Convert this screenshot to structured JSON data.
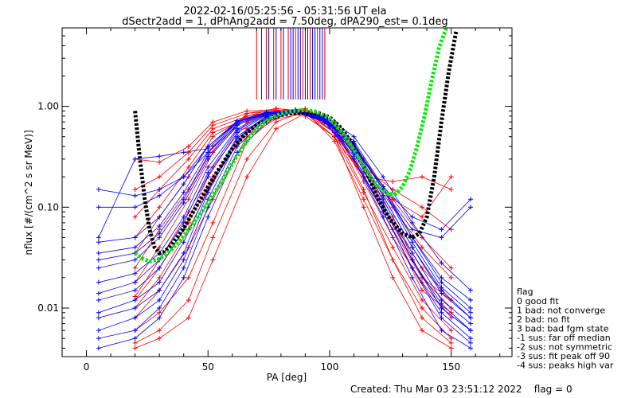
{
  "chart_data": {
    "type": "line",
    "title": "2022-02-16/05:25:56 - 05:31:56 UT ela",
    "subtitle": "dSectr2add = 1, dPhAng2add = 7.50deg, dPA290_est=    0.1deg",
    "xlabel": "PA [deg]",
    "ylabel": "nflux [#/(cm^2 s sr MeV)]",
    "xlim": [
      -10,
      175
    ],
    "ylim": [
      0.0033,
      6.0
    ],
    "yscale": "log",
    "grid": false,
    "x_ticks": [
      0,
      50,
      100,
      150
    ],
    "x_tick_labels": [
      "0",
      "50",
      "100",
      "150"
    ],
    "y_ticks": [
      0.01,
      0.1,
      1.0
    ],
    "y_tick_labels": [
      "0.01",
      "0.10",
      "1.00"
    ],
    "footer": "Created: Thu Mar 03 23:51:12 2022    flag = 0",
    "legend": {
      "position": "right",
      "title": "flag",
      "items": [
        " 0 good fit",
        " 1 bad: not converge",
        " 2 bad: no fit",
        " 3 bad: bad fgm state",
        "-1 sus: far off median",
        "-2 sus: not symmetric",
        "-3 sus: fit peak off 90",
        "-4 sus: peaks high var"
      ]
    },
    "fit_curves": [
      {
        "color": "#000000",
        "x": [
          20,
          22,
          24,
          26,
          28,
          30,
          32,
          35,
          40,
          45,
          50,
          55,
          60,
          65,
          70,
          75,
          80,
          85,
          90,
          95,
          100,
          105,
          110,
          115,
          120,
          125,
          130,
          134,
          137,
          140,
          143,
          146,
          149,
          152
        ],
        "y": [
          0.9,
          0.3,
          0.12,
          0.06,
          0.04,
          0.035,
          0.036,
          0.042,
          0.062,
          0.1,
          0.16,
          0.25,
          0.38,
          0.52,
          0.65,
          0.75,
          0.82,
          0.86,
          0.87,
          0.86,
          0.78,
          0.6,
          0.4,
          0.23,
          0.12,
          0.075,
          0.055,
          0.05,
          0.055,
          0.08,
          0.2,
          0.7,
          2.2,
          5.5
        ]
      },
      {
        "color": "#00ee00",
        "x": [
          20,
          23,
          26,
          29,
          32,
          35,
          40,
          45,
          50,
          55,
          60,
          65,
          70,
          75,
          80,
          85,
          90,
          95,
          100,
          105,
          110,
          115,
          120,
          124,
          127,
          130,
          133,
          136,
          139,
          142,
          145,
          148
        ],
        "y": [
          0.035,
          0.031,
          0.029,
          0.03,
          0.033,
          0.038,
          0.052,
          0.075,
          0.11,
          0.17,
          0.27,
          0.42,
          0.6,
          0.75,
          0.85,
          0.9,
          0.92,
          0.88,
          0.76,
          0.56,
          0.37,
          0.23,
          0.16,
          0.135,
          0.135,
          0.16,
          0.23,
          0.4,
          0.8,
          1.8,
          3.8,
          6.0
        ]
      }
    ],
    "series": [
      {
        "color": "#ff0000",
        "x": [
          20,
          30,
          42,
          52,
          66,
          78,
          90,
          102,
          114,
          126,
          138,
          150
        ],
        "y": [
          0.0045,
          0.006,
          0.012,
          0.05,
          0.3,
          0.7,
          0.9,
          0.55,
          0.15,
          0.03,
          0.01,
          0.005
        ]
      },
      {
        "color": "#ff0000",
        "x": [
          20,
          30,
          42,
          52,
          66,
          78,
          90,
          102,
          114,
          126,
          138,
          150
        ],
        "y": [
          0.006,
          0.009,
          0.02,
          0.07,
          0.45,
          0.8,
          0.95,
          0.6,
          0.18,
          0.05,
          0.018,
          0.008
        ]
      },
      {
        "color": "#ff0000",
        "x": [
          20,
          30,
          42,
          52,
          66,
          78,
          90,
          102,
          114,
          126,
          138,
          150
        ],
        "y": [
          0.008,
          0.015,
          0.04,
          0.12,
          0.5,
          0.75,
          0.85,
          0.5,
          0.14,
          0.04,
          0.012,
          0.006
        ]
      },
      {
        "color": "#ff0000",
        "x": [
          20,
          30,
          42,
          52,
          66,
          78,
          90,
          102,
          114,
          126,
          138,
          150
        ],
        "y": [
          0.01,
          0.02,
          0.06,
          0.18,
          0.6,
          0.85,
          0.9,
          0.7,
          0.25,
          0.08,
          0.02,
          0.01
        ]
      },
      {
        "color": "#ff0000",
        "x": [
          20,
          30,
          42,
          52,
          66,
          78,
          90,
          102,
          114,
          126,
          138,
          150
        ],
        "y": [
          0.013,
          0.03,
          0.09,
          0.25,
          0.7,
          0.9,
          0.92,
          0.55,
          0.2,
          0.06,
          0.015,
          0.009
        ]
      },
      {
        "color": "#ff0000",
        "x": [
          20,
          30,
          42,
          52,
          66,
          78,
          90,
          102,
          114,
          126,
          138,
          150
        ],
        "y": [
          0.018,
          0.04,
          0.12,
          0.35,
          0.8,
          0.95,
          0.88,
          0.45,
          0.12,
          0.03,
          0.008,
          0.0045
        ]
      },
      {
        "color": "#ff0000",
        "x": [
          20,
          30,
          42,
          52,
          66,
          78,
          90,
          102,
          114,
          126,
          138,
          150
        ],
        "y": [
          0.025,
          0.06,
          0.15,
          0.4,
          0.85,
          0.95,
          0.9,
          0.6,
          0.2,
          0.07,
          0.025,
          0.012
        ]
      },
      {
        "color": "#ff0000",
        "x": [
          20,
          30,
          42,
          52,
          66,
          78,
          90,
          102,
          114,
          126,
          138,
          150
        ],
        "y": [
          0.035,
          0.08,
          0.2,
          0.5,
          0.8,
          0.9,
          0.95,
          0.65,
          0.25,
          0.1,
          0.04,
          0.02
        ]
      },
      {
        "color": "#ff0000",
        "x": [
          20,
          30,
          42,
          52,
          66,
          78,
          90,
          102,
          114,
          126,
          138,
          150
        ],
        "y": [
          0.05,
          0.1,
          0.25,
          0.55,
          0.75,
          0.85,
          0.9,
          0.7,
          0.3,
          0.12,
          0.05,
          0.025
        ]
      },
      {
        "color": "#ff0000",
        "x": [
          20,
          30,
          42,
          52,
          66,
          78,
          90,
          102,
          114,
          126,
          138,
          150
        ],
        "y": [
          0.08,
          0.15,
          0.3,
          0.6,
          0.8,
          0.88,
          0.85,
          0.6,
          0.25,
          0.15,
          0.1,
          0.06
        ]
      },
      {
        "color": "#ff0000",
        "x": [
          20,
          30,
          42,
          52,
          66,
          78,
          90,
          102,
          114,
          126,
          138,
          150
        ],
        "y": [
          0.15,
          0.2,
          0.35,
          0.65,
          0.85,
          0.9,
          0.8,
          0.5,
          0.2,
          0.18,
          0.2,
          0.15
        ]
      },
      {
        "color": "#ff0000",
        "x": [
          20,
          30,
          42,
          52,
          66,
          78,
          90,
          102,
          114,
          126,
          138,
          150
        ],
        "y": [
          0.3,
          0.28,
          0.4,
          0.7,
          0.9,
          0.92,
          0.85,
          0.55,
          0.22,
          0.12,
          0.08,
          0.2
        ]
      },
      {
        "color": "#ff0000",
        "x": [
          20,
          30,
          42,
          52,
          66,
          78,
          90,
          102,
          114,
          126,
          138,
          150
        ],
        "y": [
          0.004,
          0.005,
          0.008,
          0.03,
          0.2,
          0.6,
          0.85,
          0.5,
          0.1,
          0.02,
          0.006,
          0.004
        ]
      },
      {
        "color": "#ff0000",
        "x": [
          20,
          30,
          42,
          52,
          66,
          78,
          90,
          102,
          114,
          126,
          138,
          150
        ],
        "y": [
          0.012,
          0.025,
          0.07,
          0.2,
          0.55,
          0.82,
          0.93,
          0.62,
          0.2,
          0.06,
          0.02,
          0.012
        ]
      },
      {
        "color": "#0000ff",
        "x": [
          5,
          20,
          30,
          40,
          50,
          62,
          74,
          86,
          98,
          110,
          122,
          134,
          146,
          158
        ],
        "y": [
          0.004,
          0.005,
          0.008,
          0.02,
          0.08,
          0.35,
          0.7,
          0.9,
          0.7,
          0.3,
          0.08,
          0.02,
          0.006,
          0.004
        ]
      },
      {
        "color": "#0000ff",
        "x": [
          5,
          20,
          30,
          40,
          50,
          62,
          74,
          86,
          98,
          110,
          122,
          134,
          146,
          158
        ],
        "y": [
          0.006,
          0.008,
          0.012,
          0.03,
          0.12,
          0.45,
          0.78,
          0.92,
          0.75,
          0.35,
          0.1,
          0.03,
          0.01,
          0.006
        ]
      },
      {
        "color": "#0000ff",
        "x": [
          5,
          20,
          30,
          40,
          50,
          62,
          74,
          86,
          98,
          110,
          122,
          134,
          146,
          158
        ],
        "y": [
          0.009,
          0.012,
          0.018,
          0.045,
          0.15,
          0.5,
          0.8,
          0.88,
          0.7,
          0.3,
          0.09,
          0.025,
          0.009,
          0.005
        ]
      },
      {
        "color": "#0000ff",
        "x": [
          5,
          20,
          30,
          40,
          50,
          62,
          74,
          86,
          98,
          110,
          122,
          134,
          146,
          158
        ],
        "y": [
          0.012,
          0.015,
          0.025,
          0.06,
          0.2,
          0.55,
          0.82,
          0.9,
          0.78,
          0.4,
          0.13,
          0.04,
          0.014,
          0.008
        ]
      },
      {
        "color": "#0000ff",
        "x": [
          5,
          20,
          30,
          40,
          50,
          62,
          74,
          86,
          98,
          110,
          122,
          134,
          146,
          158
        ],
        "y": [
          0.018,
          0.022,
          0.035,
          0.08,
          0.25,
          0.6,
          0.85,
          0.92,
          0.8,
          0.45,
          0.16,
          0.05,
          0.018,
          0.01
        ]
      },
      {
        "color": "#0000ff",
        "x": [
          5,
          20,
          30,
          40,
          50,
          62,
          74,
          86,
          98,
          110,
          122,
          134,
          146,
          158
        ],
        "y": [
          0.025,
          0.03,
          0.05,
          0.11,
          0.3,
          0.65,
          0.86,
          0.9,
          0.72,
          0.38,
          0.12,
          0.035,
          0.012,
          0.007
        ]
      },
      {
        "color": "#0000ff",
        "x": [
          5,
          20,
          30,
          40,
          50,
          62,
          74,
          86,
          98,
          110,
          122,
          134,
          146,
          158
        ],
        "y": [
          0.035,
          0.04,
          0.065,
          0.14,
          0.35,
          0.7,
          0.88,
          0.88,
          0.75,
          0.42,
          0.15,
          0.05,
          0.02,
          0.012
        ]
      },
      {
        "color": "#0000ff",
        "x": [
          5,
          20,
          30,
          40,
          50,
          62,
          74,
          86,
          98,
          110,
          122,
          134,
          146,
          158
        ],
        "y": [
          0.045,
          0.05,
          0.08,
          0.17,
          0.4,
          0.72,
          0.87,
          0.9,
          0.8,
          0.5,
          0.2,
          0.07,
          0.028,
          0.015
        ]
      },
      {
        "color": "#0000ff",
        "x": [
          5,
          20,
          30,
          40,
          50,
          62,
          74,
          86,
          98,
          110,
          122,
          134,
          146,
          158
        ],
        "y": [
          0.15,
          0.13,
          0.15,
          0.2,
          0.35,
          0.65,
          0.85,
          0.9,
          0.7,
          0.35,
          0.1,
          0.03,
          0.01,
          0.006
        ]
      },
      {
        "color": "#0000ff",
        "x": [
          5,
          20,
          30,
          40,
          50,
          62,
          74,
          86,
          98,
          110,
          122,
          134,
          146,
          158
        ],
        "y": [
          0.1,
          0.1,
          0.13,
          0.2,
          0.4,
          0.7,
          0.86,
          0.92,
          0.75,
          0.4,
          0.15,
          0.06,
          0.05,
          0.1
        ]
      },
      {
        "color": "#0000ff",
        "x": [
          5,
          20,
          30,
          40,
          50,
          62,
          74,
          86,
          98,
          110,
          122,
          134,
          146,
          158
        ],
        "y": [
          0.05,
          0.3,
          0.32,
          0.35,
          0.38,
          0.7,
          0.85,
          0.88,
          0.72,
          0.38,
          0.16,
          0.08,
          0.06,
          0.12
        ]
      },
      {
        "color": "#0000ff",
        "x": [
          5,
          20,
          30,
          40,
          50,
          62,
          74,
          86,
          98,
          110,
          122,
          134,
          146,
          158
        ],
        "y": [
          0.008,
          0.01,
          0.015,
          0.035,
          0.14,
          0.48,
          0.8,
          0.9,
          0.76,
          0.34,
          0.11,
          0.03,
          0.011,
          0.006
        ]
      },
      {
        "color": "#0000ff",
        "x": [
          5,
          20,
          30,
          40,
          50,
          62,
          74,
          86,
          98,
          110,
          122,
          134,
          146,
          158
        ],
        "y": [
          0.005,
          0.006,
          0.01,
          0.025,
          0.1,
          0.4,
          0.75,
          0.9,
          0.72,
          0.32,
          0.09,
          0.025,
          0.008,
          0.0045
        ]
      },
      {
        "color": "#0000ff",
        "x": [
          5,
          20,
          30,
          40,
          50,
          62,
          74,
          86,
          98,
          110,
          122,
          134,
          146,
          158
        ],
        "y": [
          0.014,
          0.018,
          0.03,
          0.07,
          0.22,
          0.58,
          0.83,
          0.91,
          0.77,
          0.43,
          0.15,
          0.045,
          0.016,
          0.009
        ]
      },
      {
        "color": "#0000ff",
        "x": [
          5,
          20,
          30,
          40,
          50,
          62,
          74,
          86,
          98,
          110,
          122,
          134,
          146,
          158
        ],
        "y": [
          0.03,
          0.035,
          0.055,
          0.12,
          0.32,
          0.67,
          0.87,
          0.89,
          0.74,
          0.4,
          0.13,
          0.04,
          0.015,
          0.008
        ]
      }
    ],
    "vlines": [
      {
        "color": "#ff0000",
        "x": [
          70,
          74,
          77,
          80,
          83,
          86,
          89,
          92,
          95,
          98
        ]
      },
      {
        "color": "#0000ff",
        "x": [
          72,
          75,
          78,
          81,
          84,
          85,
          87,
          88,
          90,
          91,
          93,
          94,
          96,
          97
        ]
      }
    ]
  }
}
